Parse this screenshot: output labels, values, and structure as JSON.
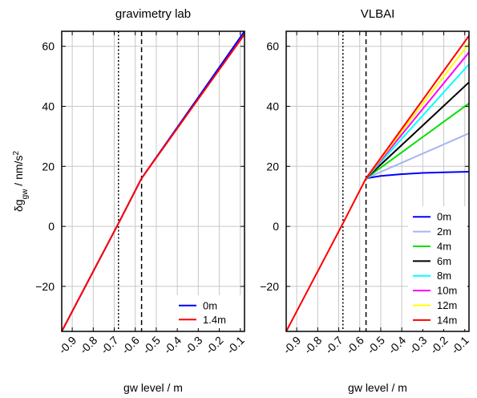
{
  "chart_data": [
    {
      "type": "line",
      "title": "gravimetry lab",
      "xlabel": "gw level / m",
      "ylabel_main": "δg",
      "ylabel_sub": "gw",
      "ylabel_unit": " / nm/s",
      "ylabel_sup": "2",
      "xlim": [
        -0.95,
        -0.08
      ],
      "ylim": [
        -35,
        65
      ],
      "xticks": [
        -0.9,
        -0.8,
        -0.7,
        -0.6,
        -0.5,
        -0.4,
        -0.3,
        -0.2,
        -0.1
      ],
      "xtick_labels": [
        "-0.9",
        "-0.8",
        "-0.7",
        "-0.6",
        "-0.5",
        "-0.4",
        "-0.3",
        "-0.2",
        "-0.1"
      ],
      "yticks": [
        -20,
        0,
        20,
        40,
        60
      ],
      "ytick_labels": [
        "−20",
        "0",
        "20",
        "40",
        "60"
      ],
      "grid": true,
      "vlines": [
        {
          "x": -0.68,
          "style": "dotted"
        },
        {
          "x": -0.57,
          "style": "dashed"
        }
      ],
      "legend_position": "bottom-right",
      "series": [
        {
          "name": "0m",
          "color": "#0000ff",
          "x": [
            -0.95,
            -0.68,
            -0.57,
            -0.08
          ],
          "y": [
            -35,
            1,
            16,
            65
          ]
        },
        {
          "name": "1.4m",
          "color": "#ff0000",
          "x": [
            -0.95,
            -0.68,
            -0.57,
            -0.08
          ],
          "y": [
            -35,
            1,
            16,
            64
          ]
        }
      ]
    },
    {
      "type": "line",
      "title": "VLBAI",
      "xlabel": "gw level / m",
      "xlim": [
        -0.95,
        -0.08
      ],
      "ylim": [
        -35,
        65
      ],
      "xticks": [
        -0.9,
        -0.8,
        -0.7,
        -0.6,
        -0.5,
        -0.4,
        -0.3,
        -0.2,
        -0.1
      ],
      "xtick_labels": [
        "-0.9",
        "-0.8",
        "-0.7",
        "-0.6",
        "-0.5",
        "-0.4",
        "-0.3",
        "-0.2",
        "-0.1"
      ],
      "yticks": [
        -20,
        0,
        20,
        40,
        60
      ],
      "ytick_labels": [
        "−20",
        "0",
        "20",
        "40",
        "60"
      ],
      "grid": true,
      "vlines": [
        {
          "x": -0.68,
          "style": "dotted"
        },
        {
          "x": -0.57,
          "style": "dashed"
        }
      ],
      "legend_position": "bottom-right",
      "shared_segment": {
        "x": [
          -0.95,
          -0.68,
          -0.57
        ],
        "y": [
          -35,
          1,
          16
        ]
      },
      "series": [
        {
          "name": "0m",
          "color": "#0000ff",
          "x": [
            -0.57,
            -0.5,
            -0.4,
            -0.3,
            -0.2,
            -0.08
          ],
          "y": [
            16,
            16.8,
            17.4,
            17.8,
            18.0,
            18.2
          ]
        },
        {
          "name": "2m",
          "color": "#a8b4f0",
          "x": [
            -0.57,
            -0.08
          ],
          "y": [
            16,
            31
          ]
        },
        {
          "name": "4m",
          "color": "#00e000",
          "x": [
            -0.57,
            -0.08
          ],
          "y": [
            16,
            41
          ]
        },
        {
          "name": "6m",
          "color": "#000000",
          "x": [
            -0.57,
            -0.08
          ],
          "y": [
            16,
            48
          ]
        },
        {
          "name": "8m",
          "color": "#00ffff",
          "x": [
            -0.57,
            -0.08
          ],
          "y": [
            16,
            54
          ]
        },
        {
          "name": "10m",
          "color": "#ff00ff",
          "x": [
            -0.57,
            -0.08
          ],
          "y": [
            16,
            58
          ]
        },
        {
          "name": "12m",
          "color": "#ffff00",
          "x": [
            -0.57,
            -0.08
          ],
          "y": [
            16,
            61
          ]
        },
        {
          "name": "14m",
          "color": "#ff0000",
          "x": [
            -0.57,
            -0.08
          ],
          "y": [
            16,
            63.5
          ]
        }
      ]
    }
  ]
}
